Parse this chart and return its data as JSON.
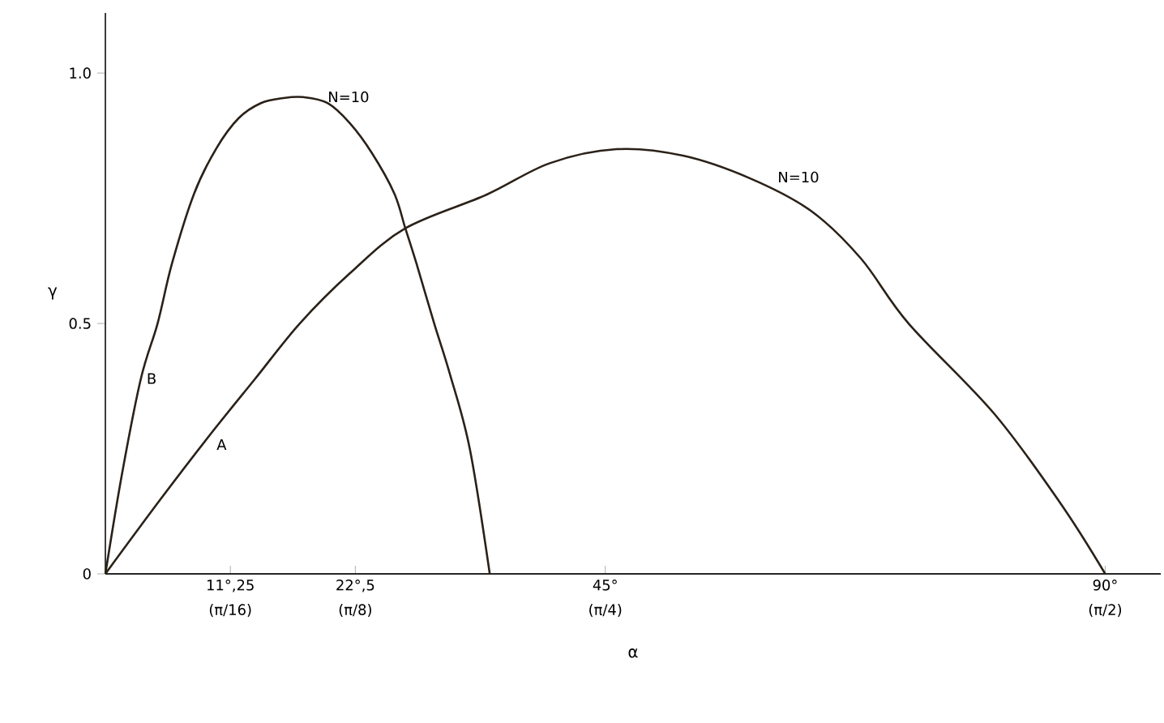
{
  "chart_data": {
    "type": "line",
    "xlabel": "α",
    "ylabel": "γ",
    "xlim": [
      0,
      95
    ],
    "ylim": [
      0,
      1.12
    ],
    "xticks": [
      {
        "value": 11.25,
        "label": "11°,25"
      },
      {
        "value": 22.5,
        "label": "22°,5"
      },
      {
        "value": 45,
        "label": "45°"
      },
      {
        "value": 90,
        "label": "90°"
      }
    ],
    "yticks": [
      {
        "value": 0,
        "label": "0"
      },
      {
        "value": 0.5,
        "label": "0.5"
      },
      {
        "value": 1.0,
        "label": "1.0"
      }
    ],
    "series": [
      {
        "name": "B",
        "color": "#2a2118",
        "x": [
          0,
          1.5,
          3.2,
          4.7,
          6,
          8,
          10,
          12,
          14,
          16,
          17.8,
          20,
          22,
          24,
          26,
          27,
          28,
          29.6,
          31,
          32.8,
          34.6
        ],
        "values": [
          0,
          0.2,
          0.39,
          0.5,
          0.62,
          0.76,
          0.85,
          0.91,
          0.94,
          0.95,
          0.952,
          0.94,
          0.9,
          0.84,
          0.76,
          0.69,
          0.62,
          0.5,
          0.4,
          0.25,
          0
        ]
      },
      {
        "name": "A",
        "color": "#2a2118",
        "x": [
          0,
          5,
          9.5,
          13.5,
          17.5,
          22,
          27,
          34.3,
          40,
          46,
          52,
          58,
          63.5,
          68,
          72.3,
          80,
          86,
          90
        ],
        "values": [
          0,
          0.15,
          0.28,
          0.39,
          0.5,
          0.6,
          0.69,
          0.757,
          0.82,
          0.848,
          0.835,
          0.79,
          0.725,
          0.63,
          0.5,
          0.32,
          0.14,
          0
        ]
      }
    ],
    "annotations": [
      {
        "text": "N=10",
        "x": 19.5,
        "y": 0.93
      },
      {
        "text": "N=10",
        "x": 60,
        "y": 0.77
      },
      "(π/16)",
      "(π/8)",
      "(π/4)",
      "(π/2)"
    ],
    "grid": false,
    "legend": false,
    "marker": "none",
    "line_style": "solid"
  }
}
